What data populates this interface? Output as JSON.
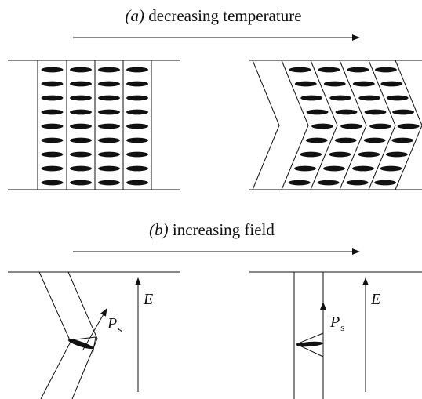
{
  "panel_a": {
    "tag": "(a)",
    "caption": "decreasing temperature"
  },
  "panel_b": {
    "tag": "(b)",
    "caption": "increasing field",
    "left": {
      "polarization": {
        "symbol": "P",
        "subscript": "s"
      },
      "field": "E"
    },
    "right": {
      "polarization": {
        "symbol": "P",
        "subscript": "s"
      },
      "field": "E"
    }
  }
}
